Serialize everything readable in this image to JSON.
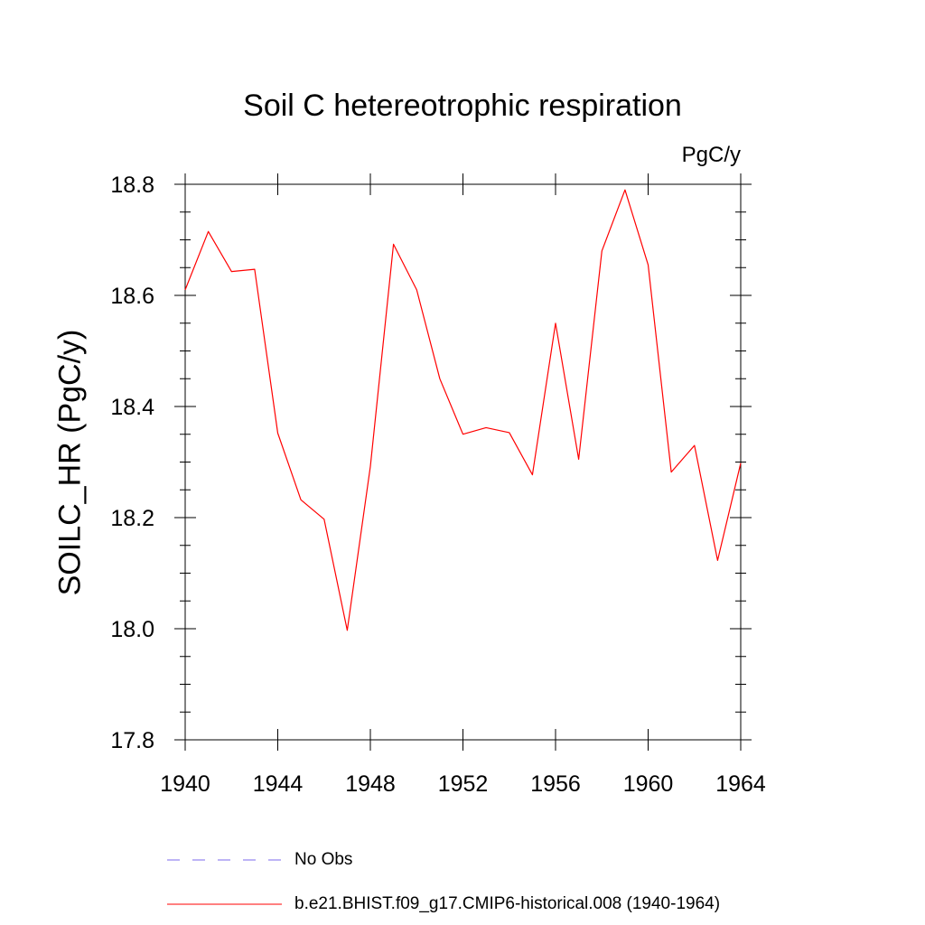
{
  "chart_data": {
    "type": "line",
    "title": "Soil C hetereotrophic respiration",
    "units": "PgC/y",
    "ylabel": "SOILC_HR  (PgC/y)",
    "xlabel": "",
    "xlim": [
      1940,
      1964
    ],
    "ylim": [
      17.8,
      18.8
    ],
    "x_ticks": [
      "1940",
      "1944",
      "1948",
      "1952",
      "1956",
      "1960",
      "1964"
    ],
    "y_ticks": [
      "17.8",
      "18.0",
      "18.2",
      "18.4",
      "18.6",
      "18.8"
    ],
    "grid": false,
    "legend_position": "bottom",
    "series": [
      {
        "name": "b.e21.BHIST.f09_g17.CMIP6-historical.008 (1940-1964)",
        "color": "#ff0000",
        "style": "solid",
        "x": [
          1940,
          1941,
          1942,
          1943,
          1944,
          1945,
          1946,
          1947,
          1948,
          1949,
          1950,
          1951,
          1952,
          1953,
          1954,
          1955,
          1956,
          1957,
          1958,
          1959,
          1960,
          1961,
          1962,
          1963,
          1964
        ],
        "y": [
          18.61,
          18.715,
          18.643,
          18.647,
          18.352,
          18.232,
          18.197,
          17.997,
          18.292,
          18.692,
          18.61,
          18.45,
          18.35,
          18.362,
          18.353,
          18.277,
          18.55,
          18.305,
          18.68,
          18.79,
          18.655,
          18.282,
          18.33,
          18.123,
          18.298
        ]
      }
    ],
    "legend": [
      {
        "label": "No Obs",
        "color": "#7b68ee",
        "style": "dashed"
      },
      {
        "label": "b.e21.BHIST.f09_g17.CMIP6-historical.008 (1940-1964)",
        "color": "#ff0000",
        "style": "solid"
      }
    ]
  }
}
